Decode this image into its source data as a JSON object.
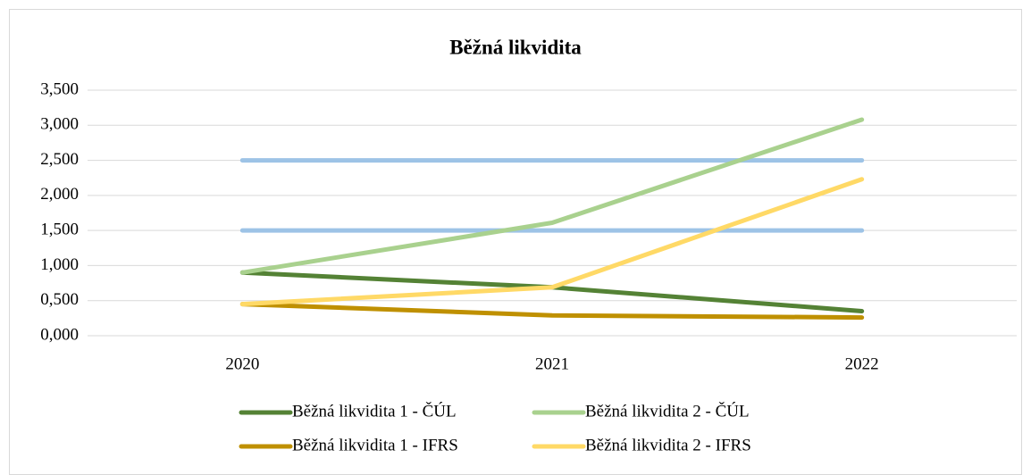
{
  "chart_data": {
    "type": "line",
    "title": "Běžná likvidita",
    "categories": [
      "2020",
      "2021",
      "2022"
    ],
    "series": [
      {
        "color": "#9dc3e6",
        "values": [
          2.5,
          2.5,
          2.5
        ]
      },
      {
        "color": "#9dc3e6",
        "values": [
          1.5,
          1.5,
          1.5
        ]
      },
      {
        "name": "Běžná likvidita 1 - ČÚL",
        "color": "#548235",
        "values": [
          0.9,
          0.69,
          0.35
        ]
      },
      {
        "name": "Běžná likvidita 2 - ČÚL",
        "color": "#a9d18e",
        "values": [
          0.9,
          1.61,
          3.08
        ]
      },
      {
        "name": "Běžná likvidita 1 - IFRS",
        "color": "#bf9000",
        "values": [
          0.45,
          0.29,
          0.26
        ]
      },
      {
        "name": "Běžná likvidita 2 - IFRS",
        "color": "#ffd966",
        "values": [
          0.45,
          0.69,
          2.23
        ]
      }
    ],
    "ylim": [
      0,
      3.5
    ],
    "yticks": [
      {
        "value": 0,
        "label": "0,000"
      },
      {
        "value": 0.5,
        "label": "0,500"
      },
      {
        "value": 1,
        "label": "1,000"
      },
      {
        "value": 1.5,
        "label": "1,500"
      },
      {
        "value": 2,
        "label": "2,000"
      },
      {
        "value": 2.5,
        "label": "2,500"
      },
      {
        "value": 3,
        "label": "3,000"
      },
      {
        "value": 3.5,
        "label": "3,500"
      }
    ],
    "grid": true
  }
}
